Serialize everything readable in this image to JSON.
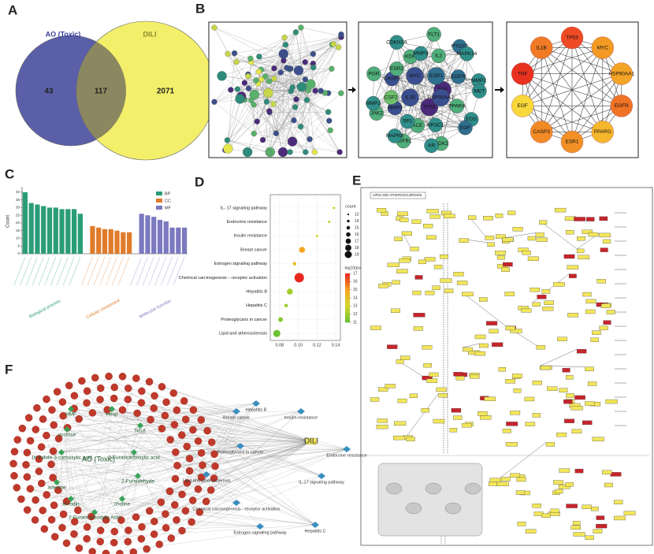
{
  "panel_labels": [
    "A",
    "B",
    "C",
    "D",
    "E",
    "F"
  ],
  "venn": {
    "sets": [
      {
        "name": "AO (Toxic)",
        "color": "#5b5fa8"
      },
      {
        "name": "DILI",
        "color": "#f3ef6a"
      }
    ],
    "only_first": 43,
    "both": 117,
    "only_second": 2071
  },
  "network_b": {
    "core_nodes": [
      {
        "label": "TNF",
        "color": "#4b2a7a"
      },
      {
        "label": "TP53",
        "color": "#4b2a7a"
      },
      {
        "label": "IL1B",
        "color": "#3a4f8f"
      },
      {
        "label": "MYC",
        "color": "#3a4f8f"
      },
      {
        "label": "ESR1",
        "color": "#2f6f8f"
      },
      {
        "label": "HSP90AA1",
        "color": "#3a4f8f"
      },
      {
        "label": "ACE",
        "color": "#4fae7a"
      },
      {
        "label": "MMP9",
        "color": "#3a4f8f"
      },
      {
        "label": "CASP3",
        "color": "#3a4f8f"
      },
      {
        "label": "KDR",
        "color": "#4fae7a"
      },
      {
        "label": "IL2",
        "color": "#4fae7a"
      },
      {
        "label": "EGFR",
        "color": "#2f6f8f"
      },
      {
        "label": "PPARA",
        "color": "#4fae7a"
      },
      {
        "label": "NR3C1",
        "color": "#2f8f8a"
      },
      {
        "label": "SP1",
        "color": "#2f8f8a"
      },
      {
        "label": "CSF2",
        "color": "#6cc06c"
      },
      {
        "label": "ESR2",
        "color": "#4fae7a"
      },
      {
        "label": "MMP3",
        "color": "#2f8f8a"
      },
      {
        "label": "PTGS2",
        "color": "#2f6f8f"
      },
      {
        "label": "MMP2",
        "color": "#2f8f8a"
      },
      {
        "label": "FOS",
        "color": "#2f8f8a"
      },
      {
        "label": "CDK2",
        "color": "#4fae7a"
      },
      {
        "label": "TGFB1",
        "color": "#4fae7a"
      },
      {
        "label": "JAK2",
        "color": "#4fae7a"
      },
      {
        "label": "PGR",
        "color": "#4fae7a"
      },
      {
        "label": "CDKN1A",
        "color": "#2f8f8a"
      },
      {
        "label": "FLT1",
        "color": "#4fae7a"
      },
      {
        "label": "MAPK14",
        "color": "#2f8f8a"
      },
      {
        "label": "MET",
        "color": "#2f8f8a"
      },
      {
        "label": "EGF",
        "color": "#2f6f8f"
      },
      {
        "label": "AR",
        "color": "#2f8f8a"
      },
      {
        "label": "MAPK8",
        "color": "#2f8f8a"
      },
      {
        "label": "MMP1",
        "color": "#2f8f8a"
      }
    ],
    "hub_genes": [
      {
        "label": "TP53",
        "color": "#ee4a24"
      },
      {
        "label": "MYC",
        "color": "#f39a25"
      },
      {
        "label": "HSP90AA1",
        "color": "#f3a326"
      },
      {
        "label": "EGFR",
        "color": "#f07325"
      },
      {
        "label": "PPARG",
        "color": "#f6b72c"
      },
      {
        "label": "ESR1",
        "color": "#f29026"
      },
      {
        "label": "CASP3",
        "color": "#f28a26"
      },
      {
        "label": "EGF",
        "color": "#f8d83a"
      },
      {
        "label": "TNF",
        "color": "#e8321f"
      },
      {
        "label": "IL1B",
        "color": "#f07a25"
      }
    ]
  },
  "chart_data": [
    {
      "type": "bar",
      "y_label": "Count",
      "ylim": [
        0,
        42
      ],
      "yticks": [
        0,
        5,
        10,
        15,
        20,
        25,
        30,
        35,
        40
      ],
      "series": [
        {
          "name": "BP",
          "group_label": "Biological process",
          "color": "#2a9d78",
          "values": [
            40,
            33,
            32,
            31,
            30,
            30,
            29,
            29,
            29,
            26
          ]
        },
        {
          "name": "CC",
          "group_label": "Cellular component",
          "color": "#e07b2a",
          "values": [
            18,
            17,
            16,
            16,
            15,
            14,
            14
          ]
        },
        {
          "name": "MF",
          "group_label": "Molecular function",
          "color": "#7b79bf",
          "values": [
            26,
            25,
            24,
            22,
            21,
            17,
            17,
            17
          ]
        }
      ]
    },
    {
      "type": "scatter",
      "categories": [
        "IL- 17 signaling pathway",
        "Endocrine resistance",
        "Insulin resistance",
        "Breast cancer",
        "Estrogen signaling pathway",
        "Chemical carcinogenesis – receptor activation",
        "Hepatitis B",
        "Hepatitis C",
        "Proteoglycans in cancer",
        "Lipid and atherosclerosis"
      ],
      "x": [
        0.138,
        0.133,
        0.12,
        0.104,
        0.096,
        0.101,
        0.091,
        0.087,
        0.081,
        0.077
      ],
      "sizes": [
        13,
        13,
        13,
        16,
        14,
        19,
        16,
        14,
        15,
        17
      ],
      "color_values": [
        13,
        12.5,
        13,
        15,
        14,
        17,
        12,
        12,
        11.5,
        11
      ],
      "xlim": [
        0.07,
        0.145
      ],
      "xticks": [
        {
          "value": 0.08,
          "label": "0.08"
        },
        {
          "value": 0.1,
          "label": "0.10"
        },
        {
          "value": 0.12,
          "label": "0.12"
        },
        {
          "value": 0.14,
          "label": "0.14"
        }
      ],
      "size_legend": {
        "title": "count",
        "values": [
          13,
          14,
          15,
          16,
          17,
          18,
          19
        ]
      },
      "color_legend": {
        "title": "-log10(pvalue)",
        "ticks": [
          17,
          16,
          15,
          14,
          13,
          12,
          11
        ],
        "colors": [
          "#e8261f",
          "#f5a623",
          "#d6d62a",
          "#6cc230"
        ]
      }
    }
  ],
  "pathway": {
    "title": "LIPID AND ATHEROSCLEROSIS"
  },
  "network_f": {
    "hub": "AO (Toxic)",
    "target": "DILI",
    "compounds": [
      "HMF",
      "Hesp",
      "sucrose",
      "NGA",
      "1h-indole-3-carboxylic acid",
      "2-Furancarboxylic acid",
      "2-Furaldehyde",
      "choline",
      "emodin",
      "2-Furancarboxylic Acid",
      "adenine"
    ],
    "pathways": [
      "Hepatitis B",
      "Insulin resistance",
      "Breast cancer",
      "Proteoglycans in cancer",
      "Lipid and atherosclerosis",
      "Endocrine resistance",
      "IL-17 signaling pathway",
      "Chemical carcinogenesis - receptor activation",
      "Estrogen signaling pathway",
      "Hepatitis C"
    ]
  }
}
